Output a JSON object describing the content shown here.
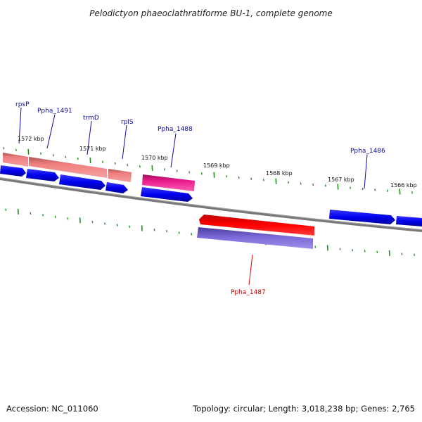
{
  "title": "Pelodictyon phaeoclathratiforme BU-1, complete genome",
  "kbp_labels": [
    "1572 kbp",
    "1571 kbp",
    "1570 kbp",
    "1569 kbp",
    "1568 kbp",
    "1567 kbp",
    "1566 kbp"
  ],
  "gene_labels": [
    "rpsP",
    "Ppha_1491",
    "trmD",
    "rplS",
    "Ppha_1488",
    "Ppha_1486",
    "Ppha_1487"
  ],
  "footer": {
    "accession": "Accession: NC_011060",
    "summary": "Topology: circular; Length: 3,018,238 bp; Genes: 2,765"
  },
  "colors": {
    "forward_gene": "#0000ee",
    "reverse_gene": "#6a5acd",
    "salmon_feature": "#f08080",
    "magenta_feature": "#ee1b8f",
    "red_feature": "#ff0000",
    "backbone": "#808080",
    "tick": "#228b22",
    "label_blue": "#0a0aa0",
    "label_red": "#d00000"
  }
}
